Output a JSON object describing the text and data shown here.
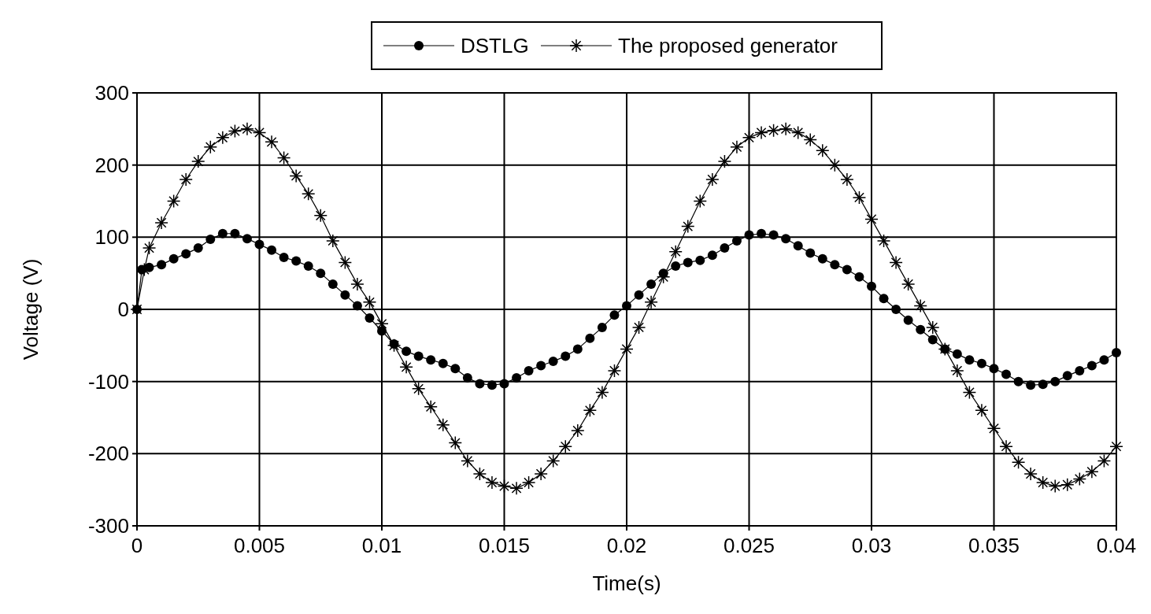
{
  "chart_data": {
    "type": "line",
    "xlabel": "Time(s)",
    "ylabel": "Voltage (V)",
    "xlim": [
      0,
      0.04
    ],
    "ylim": [
      -300,
      300
    ],
    "xticks": [
      0,
      0.005,
      0.01,
      0.015,
      0.02,
      0.025,
      0.03,
      0.035,
      0.04
    ],
    "yticks": [
      -300,
      -200,
      -100,
      0,
      100,
      200,
      300
    ],
    "grid": true,
    "legend": "top",
    "line_style": "solid",
    "series": [
      {
        "name": "DSTLG",
        "color": "#000000",
        "marker": "circle",
        "x": [
          0,
          0.0002,
          0.0005,
          0.001,
          0.0015,
          0.002,
          0.0025,
          0.003,
          0.0035,
          0.004,
          0.0045,
          0.005,
          0.0055,
          0.006,
          0.0065,
          0.007,
          0.0075,
          0.008,
          0.0085,
          0.009,
          0.0095,
          0.01,
          0.0105,
          0.011,
          0.0115,
          0.012,
          0.0125,
          0.013,
          0.0135,
          0.014,
          0.0145,
          0.015,
          0.0155,
          0.016,
          0.0165,
          0.017,
          0.0175,
          0.018,
          0.0185,
          0.019,
          0.0195,
          0.02,
          0.0205,
          0.021,
          0.0215,
          0.022,
          0.0225,
          0.023,
          0.0235,
          0.024,
          0.0245,
          0.025,
          0.0255,
          0.026,
          0.0265,
          0.027,
          0.0275,
          0.028,
          0.0285,
          0.029,
          0.0295,
          0.03,
          0.0305,
          0.031,
          0.0315,
          0.032,
          0.0325,
          0.033,
          0.0335,
          0.034,
          0.0345,
          0.035,
          0.0355,
          0.036,
          0.0365,
          0.037,
          0.0375,
          0.038,
          0.0385,
          0.039,
          0.0395,
          0.04
        ],
        "values": [
          0,
          55,
          58,
          62,
          70,
          77,
          85,
          97,
          105,
          105,
          98,
          90,
          82,
          72,
          67,
          60,
          50,
          35,
          20,
          5,
          -12,
          -30,
          -48,
          -58,
          -65,
          -70,
          -75,
          -82,
          -95,
          -103,
          -105,
          -103,
          -95,
          -85,
          -78,
          -72,
          -65,
          -55,
          -40,
          -25,
          -8,
          5,
          20,
          35,
          50,
          60,
          65,
          68,
          75,
          85,
          95,
          103,
          105,
          103,
          98,
          88,
          78,
          70,
          62,
          55,
          45,
          32,
          15,
          0,
          -15,
          -28,
          -42,
          -55,
          -62,
          -70,
          -75,
          -82,
          -90,
          -100,
          -105,
          -104,
          -100,
          -92,
          -85,
          -78,
          -70,
          -60
        ]
      },
      {
        "name": "The proposed generator",
        "color": "#000000",
        "marker": "cross",
        "x": [
          0,
          0.0003,
          0.0005,
          0.001,
          0.0015,
          0.002,
          0.0025,
          0.003,
          0.0035,
          0.004,
          0.0045,
          0.005,
          0.0055,
          0.006,
          0.0065,
          0.007,
          0.0075,
          0.008,
          0.0085,
          0.009,
          0.0095,
          0.01,
          0.0105,
          0.011,
          0.0115,
          0.012,
          0.0125,
          0.013,
          0.0135,
          0.014,
          0.0145,
          0.015,
          0.0155,
          0.016,
          0.0165,
          0.017,
          0.0175,
          0.018,
          0.0185,
          0.019,
          0.0195,
          0.02,
          0.0205,
          0.021,
          0.0215,
          0.022,
          0.0225,
          0.023,
          0.0235,
          0.024,
          0.0245,
          0.025,
          0.0255,
          0.026,
          0.0265,
          0.027,
          0.0275,
          0.028,
          0.0285,
          0.029,
          0.0295,
          0.03,
          0.0305,
          0.031,
          0.0315,
          0.032,
          0.0325,
          0.033,
          0.0335,
          0.034,
          0.0345,
          0.035,
          0.0355,
          0.036,
          0.0365,
          0.037,
          0.0375,
          0.038,
          0.0385,
          0.039,
          0.0395,
          0.04
        ],
        "values": [
          0,
          55,
          85,
          120,
          150,
          180,
          205,
          225,
          238,
          247,
          250,
          245,
          232,
          210,
          185,
          160,
          130,
          95,
          65,
          35,
          10,
          -20,
          -50,
          -80,
          -110,
          -135,
          -160,
          -185,
          -210,
          -228,
          -240,
          -245,
          -248,
          -240,
          -228,
          -210,
          -190,
          -168,
          -140,
          -115,
          -85,
          -55,
          -25,
          10,
          45,
          80,
          115,
          150,
          180,
          205,
          225,
          238,
          245,
          248,
          250,
          245,
          235,
          220,
          200,
          180,
          155,
          125,
          95,
          65,
          35,
          5,
          -25,
          -55,
          -85,
          -115,
          -140,
          -165,
          -190,
          -212,
          -228,
          -240,
          -245,
          -243,
          -235,
          -225,
          -210,
          -190
        ]
      }
    ]
  }
}
